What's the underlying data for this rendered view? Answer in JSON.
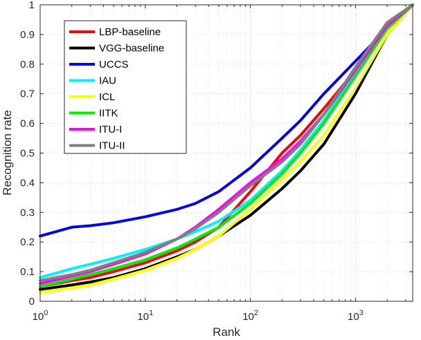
{
  "chart_data": {
    "type": "line",
    "title": "",
    "xlabel": "Rank",
    "ylabel": "Recognition rate",
    "xscale": "log",
    "xlim": [
      1,
      3500
    ],
    "ylim": [
      0,
      1
    ],
    "grid": true,
    "legend_position": "top-left",
    "x_ticks": [
      1,
      10,
      100,
      1000
    ],
    "x_tick_labels": [
      {
        "base": "10",
        "exp": "0"
      },
      {
        "base": "10",
        "exp": "1"
      },
      {
        "base": "10",
        "exp": "2"
      },
      {
        "base": "10",
        "exp": "3"
      }
    ],
    "y_ticks": [
      0,
      0.1,
      0.2,
      0.3,
      0.4,
      0.5,
      0.6,
      0.7,
      0.8,
      0.9,
      1
    ],
    "y_tick_labels": [
      "0",
      "0.1",
      "0.2",
      "0.3",
      "0.4",
      "0.5",
      "0.6",
      "0.7",
      "0.8",
      "0.9",
      "1"
    ],
    "series": [
      {
        "name": "LBP-baseline",
        "color": "#ff0000",
        "x": [
          1,
          2,
          3,
          5,
          10,
          20,
          30,
          50,
          100,
          200,
          300,
          500,
          1000,
          2000,
          3500
        ],
        "y": [
          0.05,
          0.07,
          0.08,
          0.1,
          0.13,
          0.17,
          0.2,
          0.25,
          0.37,
          0.5,
          0.56,
          0.65,
          0.78,
          0.93,
          1.0
        ]
      },
      {
        "name": "VGG-baseline",
        "color": "#000000",
        "x": [
          1,
          2,
          3,
          5,
          10,
          20,
          30,
          50,
          100,
          200,
          300,
          500,
          1000,
          2000,
          3500
        ],
        "y": [
          0.04,
          0.055,
          0.065,
          0.08,
          0.11,
          0.15,
          0.175,
          0.22,
          0.29,
          0.38,
          0.44,
          0.53,
          0.7,
          0.9,
          1.0
        ]
      },
      {
        "name": "UCCS",
        "color": "#0000ee",
        "x": [
          1,
          2,
          3,
          5,
          10,
          20,
          30,
          50,
          100,
          200,
          300,
          500,
          1000,
          2000,
          3500
        ],
        "y": [
          0.22,
          0.25,
          0.255,
          0.265,
          0.285,
          0.31,
          0.33,
          0.37,
          0.45,
          0.55,
          0.61,
          0.7,
          0.81,
          0.92,
          1.0
        ]
      },
      {
        "name": "IAU",
        "color": "#00f0ff",
        "x": [
          1,
          2,
          3,
          5,
          10,
          20,
          30,
          50,
          100,
          200,
          300,
          500,
          1000,
          2000,
          3500
        ],
        "y": [
          0.08,
          0.11,
          0.125,
          0.145,
          0.175,
          0.21,
          0.235,
          0.27,
          0.34,
          0.44,
          0.51,
          0.61,
          0.77,
          0.94,
          1.0
        ]
      },
      {
        "name": "ICL",
        "color": "#ffff00",
        "x": [
          1,
          2,
          3,
          5,
          10,
          20,
          30,
          50,
          100,
          200,
          300,
          500,
          1000,
          2000,
          3500
        ],
        "y": [
          0.03,
          0.045,
          0.055,
          0.075,
          0.105,
          0.145,
          0.175,
          0.22,
          0.31,
          0.41,
          0.47,
          0.56,
          0.72,
          0.9,
          1.0
        ]
      },
      {
        "name": "IITK",
        "color": "#00ee00",
        "x": [
          1,
          2,
          3,
          5,
          10,
          20,
          30,
          50,
          100,
          200,
          300,
          500,
          1000,
          2000,
          3500
        ],
        "y": [
          0.05,
          0.075,
          0.09,
          0.11,
          0.14,
          0.18,
          0.21,
          0.25,
          0.33,
          0.43,
          0.5,
          0.6,
          0.76,
          0.92,
          1.0
        ]
      },
      {
        "name": "ITU-I",
        "color": "#ff00ff",
        "x": [
          1,
          2,
          3,
          5,
          10,
          20,
          30,
          50,
          100,
          200,
          300,
          500,
          1000,
          2000,
          3500
        ],
        "y": [
          0.06,
          0.085,
          0.1,
          0.125,
          0.16,
          0.21,
          0.25,
          0.31,
          0.4,
          0.48,
          0.54,
          0.63,
          0.78,
          0.93,
          1.0
        ]
      },
      {
        "name": "ITU-II",
        "color": "#808080",
        "x": [
          1,
          2,
          3,
          5,
          10,
          20,
          30,
          50,
          100,
          200,
          300,
          500,
          1000,
          2000,
          3500
        ],
        "y": [
          0.07,
          0.09,
          0.105,
          0.13,
          0.165,
          0.21,
          0.245,
          0.3,
          0.39,
          0.47,
          0.53,
          0.63,
          0.79,
          0.94,
          1.0
        ]
      }
    ]
  }
}
